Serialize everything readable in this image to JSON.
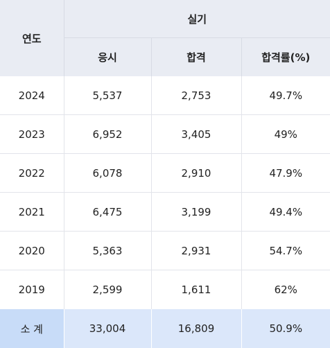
{
  "table": {
    "header": {
      "year": "연도",
      "group": "실기",
      "columns": [
        "응시",
        "합격",
        "합격률(%)"
      ]
    },
    "rows": [
      {
        "year": "2024",
        "applicants": "5,537",
        "passed": "2,753",
        "rate": "49.7%"
      },
      {
        "year": "2023",
        "applicants": "6,952",
        "passed": "3,405",
        "rate": "49%"
      },
      {
        "year": "2022",
        "applicants": "6,078",
        "passed": "2,910",
        "rate": "47.9%"
      },
      {
        "year": "2021",
        "applicants": "6,475",
        "passed": "3,199",
        "rate": "49.4%"
      },
      {
        "year": "2020",
        "applicants": "5,363",
        "passed": "2,931",
        "rate": "54.7%"
      },
      {
        "year": "2019",
        "applicants": "2,599",
        "passed": "1,611",
        "rate": "62%"
      }
    ],
    "total": {
      "label": "소 계",
      "applicants": "33,004",
      "passed": "16,809",
      "rate": "50.9%"
    }
  },
  "colors": {
    "header_bg": "#e9ecf3",
    "total_bg": "#dbe7fa",
    "total_label_bg": "#c8dcf8"
  }
}
